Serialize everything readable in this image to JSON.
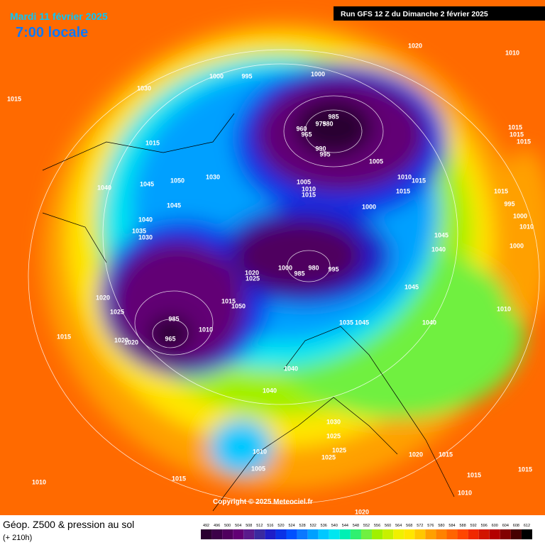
{
  "header": {
    "date": "Mardi 11 février 2025",
    "time": "7:00 locale",
    "run": "Run GFS 12 Z du Dimanche 2 février 2025"
  },
  "footer": {
    "title": "Géop. Z500 & pression au sol",
    "lead": "(+ 210h)",
    "copyright": "Copyright © 2025 Meteociel.fr"
  },
  "pressure_labels": [
    1020,
    1010,
    1015,
    1030,
    1000,
    995,
    1000,
    985,
    975,
    980,
    960,
    965,
    990,
    995,
    1015,
    1040,
    1045,
    1050,
    1030,
    1005,
    1010,
    1015,
    1005,
    1010,
    1015,
    1015,
    1000,
    1015,
    995,
    1000,
    1045,
    1040,
    1035,
    1030,
    1045,
    1040,
    1000,
    1020,
    1025,
    1000,
    985,
    980,
    995,
    1045,
    1010,
    1020,
    1025,
    1015,
    1050,
    985,
    1010,
    965,
    1020,
    1015,
    1020,
    1045,
    1035,
    1040,
    1040,
    1040,
    1030,
    1025,
    1025,
    1025,
    1010,
    1005,
    1020,
    1015,
    1015,
    1015,
    1015,
    1010,
    1010,
    1020,
    1015,
    1015,
    1015,
    1010
  ],
  "colorbar": {
    "ticks": [
      492,
      496,
      500,
      504,
      508,
      512,
      516,
      520,
      524,
      528,
      532,
      536,
      540,
      544,
      548,
      552,
      556,
      560,
      564,
      568,
      572,
      576,
      580,
      584,
      588,
      592,
      596,
      600,
      604,
      608,
      612
    ],
    "colors": [
      "#2b0030",
      "#3c0048",
      "#50005e",
      "#620075",
      "#5a1a8c",
      "#3a2aa0",
      "#1e1ec8",
      "#0a32e6",
      "#0050ff",
      "#0a78ff",
      "#00a0ff",
      "#00c8ff",
      "#00e6f0",
      "#00f0b4",
      "#30f070",
      "#70f040",
      "#a0f000",
      "#c8f000",
      "#f0f000",
      "#ffe600",
      "#ffc800",
      "#ffa000",
      "#ff8200",
      "#ff6400",
      "#ff4600",
      "#f02800",
      "#d21400",
      "#b40000",
      "#820000",
      "#460000",
      "#000000"
    ]
  }
}
